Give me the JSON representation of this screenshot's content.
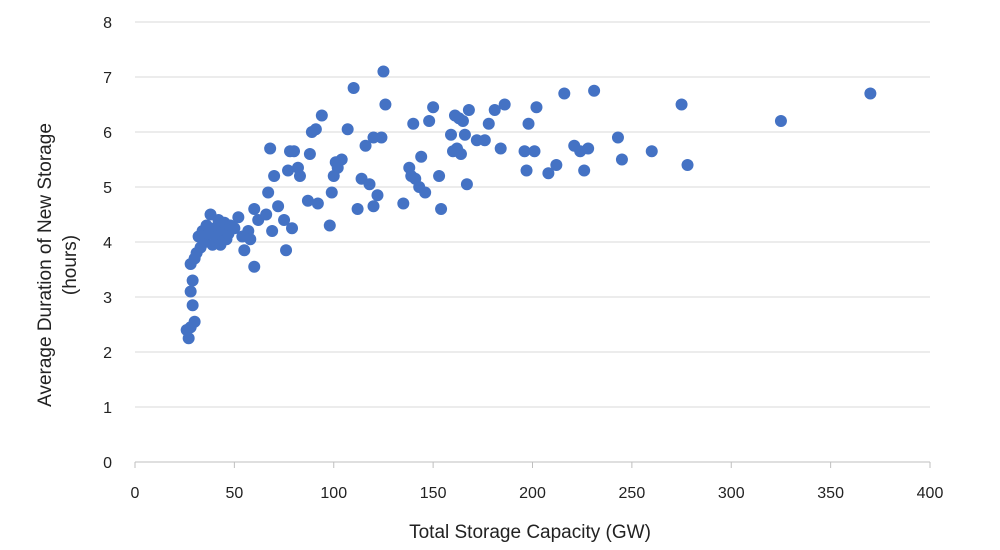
{
  "chart_data": {
    "type": "scatter",
    "title": "",
    "xlabel": "Total Storage Capacity (GW)",
    "ylabel_lines": [
      "Average Duration of New Storage",
      "(hours)"
    ],
    "xlim": [
      0,
      400
    ],
    "ylim": [
      0,
      8
    ],
    "xticks": [
      0,
      50,
      100,
      150,
      200,
      250,
      300,
      350,
      400
    ],
    "yticks": [
      0,
      1,
      2,
      3,
      4,
      5,
      6,
      7,
      8
    ],
    "grid": "horizontal",
    "legend": "none",
    "marker_color": "#4472c4",
    "points": [
      [
        26,
        2.4
      ],
      [
        27,
        2.25
      ],
      [
        28,
        2.45
      ],
      [
        29,
        2.85
      ],
      [
        30,
        2.55
      ],
      [
        28,
        3.1
      ],
      [
        29,
        3.3
      ],
      [
        28,
        3.6
      ],
      [
        30,
        3.7
      ],
      [
        31,
        3.8
      ],
      [
        32,
        4.1
      ],
      [
        33,
        3.9
      ],
      [
        34,
        4.2
      ],
      [
        35,
        4.0
      ],
      [
        36,
        4.3
      ],
      [
        37,
        4.15
      ],
      [
        38,
        4.5
      ],
      [
        39,
        3.95
      ],
      [
        40,
        4.25
      ],
      [
        41,
        4.1
      ],
      [
        42,
        4.4
      ],
      [
        43,
        3.95
      ],
      [
        44,
        4.2
      ],
      [
        45,
        4.35
      ],
      [
        46,
        4.05
      ],
      [
        47,
        4.15
      ],
      [
        48,
        4.3
      ],
      [
        50,
        4.25
      ],
      [
        52,
        4.45
      ],
      [
        54,
        4.1
      ],
      [
        55,
        3.85
      ],
      [
        57,
        4.2
      ],
      [
        58,
        4.05
      ],
      [
        60,
        3.55
      ],
      [
        60,
        4.6
      ],
      [
        62,
        4.4
      ],
      [
        66,
        4.5
      ],
      [
        67,
        4.9
      ],
      [
        68,
        5.7
      ],
      [
        69,
        4.2
      ],
      [
        70,
        5.2
      ],
      [
        72,
        4.65
      ],
      [
        75,
        4.4
      ],
      [
        76,
        3.85
      ],
      [
        77,
        5.3
      ],
      [
        78,
        5.65
      ],
      [
        79,
        4.25
      ],
      [
        80,
        5.65
      ],
      [
        82,
        5.35
      ],
      [
        83,
        5.2
      ],
      [
        87,
        4.75
      ],
      [
        88,
        5.6
      ],
      [
        89,
        6.0
      ],
      [
        91,
        6.05
      ],
      [
        92,
        4.7
      ],
      [
        94,
        6.3
      ],
      [
        98,
        4.3
      ],
      [
        99,
        4.9
      ],
      [
        100,
        5.2
      ],
      [
        101,
        5.45
      ],
      [
        102,
        5.35
      ],
      [
        104,
        5.5
      ],
      [
        107,
        6.05
      ],
      [
        110,
        6.8
      ],
      [
        112,
        4.6
      ],
      [
        114,
        5.15
      ],
      [
        116,
        5.75
      ],
      [
        118,
        5.05
      ],
      [
        120,
        4.65
      ],
      [
        120,
        5.9
      ],
      [
        122,
        4.85
      ],
      [
        124,
        5.9
      ],
      [
        125,
        7.1
      ],
      [
        126,
        6.5
      ],
      [
        135,
        4.7
      ],
      [
        138,
        5.35
      ],
      [
        139,
        5.2
      ],
      [
        140,
        6.15
      ],
      [
        141,
        5.15
      ],
      [
        143,
        5.0
      ],
      [
        144,
        5.55
      ],
      [
        146,
        4.9
      ],
      [
        148,
        6.2
      ],
      [
        150,
        6.45
      ],
      [
        153,
        5.2
      ],
      [
        154,
        4.6
      ],
      [
        159,
        5.95
      ],
      [
        160,
        5.65
      ],
      [
        161,
        6.3
      ],
      [
        162,
        5.7
      ],
      [
        163,
        6.25
      ],
      [
        164,
        5.6
      ],
      [
        165,
        6.2
      ],
      [
        166,
        5.95
      ],
      [
        167,
        5.05
      ],
      [
        168,
        6.4
      ],
      [
        172,
        5.85
      ],
      [
        176,
        5.85
      ],
      [
        178,
        6.15
      ],
      [
        181,
        6.4
      ],
      [
        184,
        5.7
      ],
      [
        186,
        6.5
      ],
      [
        196,
        5.65
      ],
      [
        197,
        5.3
      ],
      [
        198,
        6.15
      ],
      [
        201,
        5.65
      ],
      [
        202,
        6.45
      ],
      [
        208,
        5.25
      ],
      [
        212,
        5.4
      ],
      [
        216,
        6.7
      ],
      [
        221,
        5.75
      ],
      [
        224,
        5.65
      ],
      [
        226,
        5.3
      ],
      [
        228,
        5.7
      ],
      [
        231,
        6.75
      ],
      [
        243,
        5.9
      ],
      [
        245,
        5.5
      ],
      [
        260,
        5.65
      ],
      [
        275,
        6.5
      ],
      [
        278,
        5.4
      ],
      [
        325,
        6.2
      ],
      [
        370,
        6.7
      ]
    ]
  }
}
